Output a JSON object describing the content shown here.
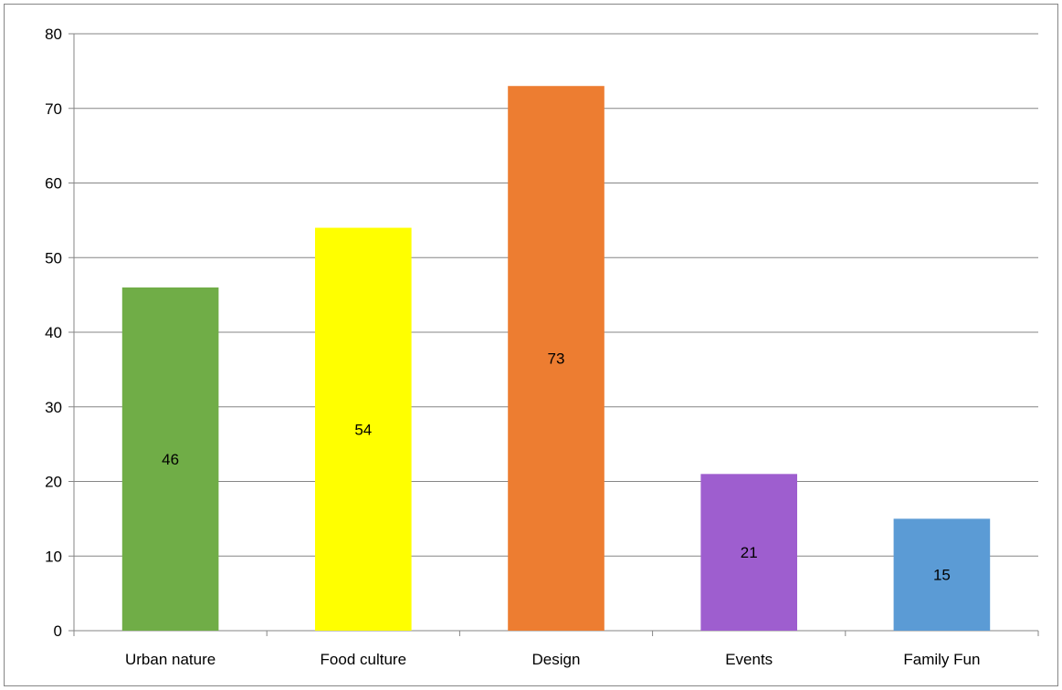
{
  "chart_data": {
    "type": "bar",
    "title": "",
    "xlabel": "",
    "ylabel": "",
    "categories": [
      "Urban nature",
      "Food culture",
      "Design",
      "Events",
      "Family Fun"
    ],
    "values": [
      46,
      54,
      73,
      21,
      15
    ],
    "data_labels": [
      "46",
      "54",
      "73",
      "21",
      "15"
    ],
    "colors": [
      "#70ad47",
      "#ffff00",
      "#ed7d31",
      "#9e5ecf",
      "#5b9bd5"
    ],
    "ylim": [
      0,
      80
    ],
    "yticks": [
      0,
      10,
      20,
      30,
      40,
      50,
      60,
      70,
      80
    ],
    "ytick_labels": [
      "0",
      "10",
      "20",
      "30",
      "40",
      "50",
      "60",
      "70",
      "80"
    ],
    "grid": true,
    "gridline_color": "#868686",
    "legend": "none"
  }
}
